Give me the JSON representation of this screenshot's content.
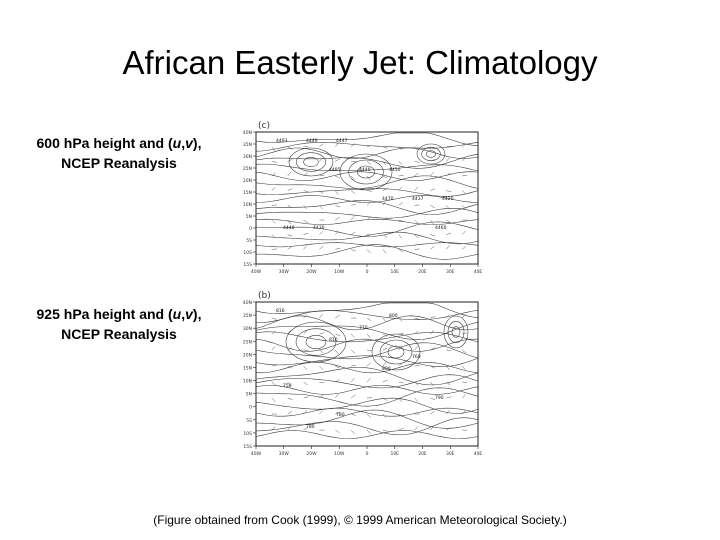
{
  "slide": {
    "title": "African Easterly Jet: Climatology",
    "credit": "(Figure obtained from Cook (1999), © 1999 American Meteorological Society.)"
  },
  "panels": [
    {
      "id": "c",
      "letter": "(c)",
      "caption_prefix": "600 hPa height and (",
      "u": "u",
      "comma": ",",
      "v": "v",
      "caption_suffix": "),",
      "caption_line2": "NCEP Reanalysis",
      "lat_labels": [
        "15S",
        "10S",
        "5S",
        "0",
        "5N",
        "10N",
        "15N",
        "20N",
        "25N",
        "30N",
        "35N",
        "40N"
      ],
      "lon_labels": [
        "40W",
        "30W",
        "20W",
        "10W",
        "0",
        "10E",
        "20E",
        "30E",
        "40E"
      ],
      "contour_labels": [
        "4493",
        "4485",
        "4470",
        "4460",
        "4449",
        "4440",
        "4437",
        "4440",
        "4447",
        "4450",
        "4420",
        "4430"
      ]
    },
    {
      "id": "b",
      "letter": "(b)",
      "caption_prefix": "925 hPa height and (",
      "u": "u",
      "comma": ",",
      "v": "v",
      "caption_suffix": "),",
      "caption_line2": "NCEP Reanalysis",
      "lat_labels": [
        "15S",
        "10S",
        "5S",
        "0",
        "5N",
        "10N",
        "15N",
        "20N",
        "25N",
        "30N",
        "35N",
        "40N"
      ],
      "lon_labels": [
        "40W",
        "30W",
        "20W",
        "10W",
        "0",
        "10E",
        "20E",
        "30E",
        "40E"
      ],
      "contour_labels": [
        "816",
        "810",
        "800",
        "790",
        "780",
        "770",
        "760",
        "750",
        "780",
        "800"
      ]
    }
  ]
}
